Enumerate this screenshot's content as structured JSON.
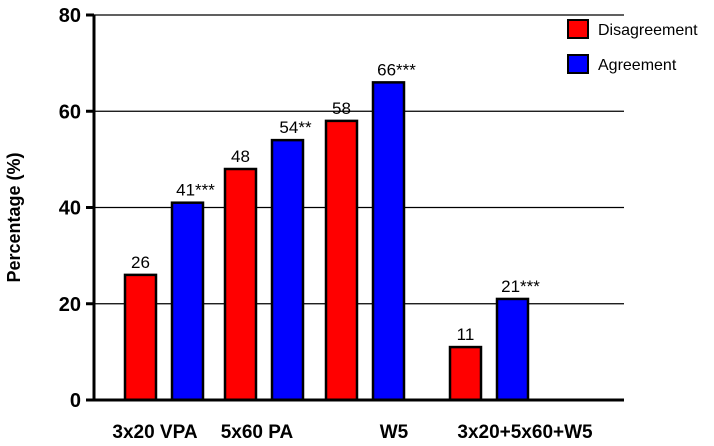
{
  "chart_data": {
    "type": "bar",
    "title": "",
    "xlabel": "",
    "ylabel": "Percentage (%)",
    "ylim": [
      0,
      80
    ],
    "yticks": [
      0,
      20,
      40,
      60,
      80
    ],
    "grid": "horizontal",
    "legend_position": "top-right",
    "categories": [
      "3x20 VPA",
      "5x60 PA",
      "W5",
      "3x20+5x60+W5"
    ],
    "series": [
      {
        "name": "Disagreement",
        "color": "#ff0000",
        "values": [
          26,
          48,
          58,
          11
        ],
        "labels": [
          "26",
          "48",
          "58",
          "11"
        ]
      },
      {
        "name": "Agreement",
        "color": "#0000ff",
        "values": [
          41,
          54,
          66,
          21
        ],
        "labels": [
          "41***",
          "54**",
          "66***",
          "21***"
        ]
      }
    ]
  }
}
